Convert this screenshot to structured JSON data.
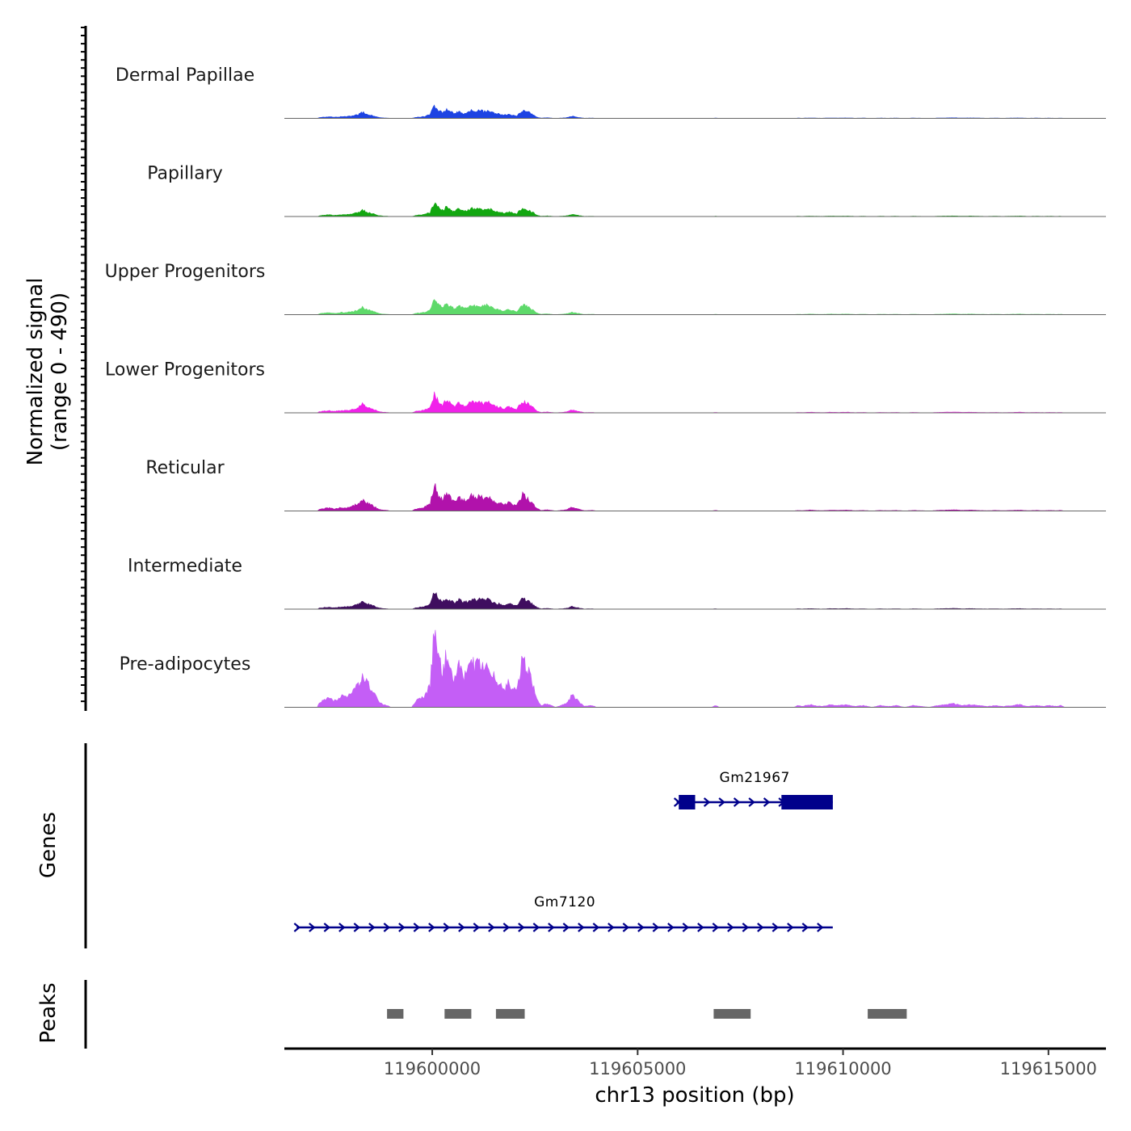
{
  "chart_data": {
    "type": "area",
    "title": "",
    "ylabel": "Normalized signal\n(range 0 - 490)",
    "ylabel_lines": [
      "Normalized signal",
      "(range 0 - 490)"
    ],
    "ylim": [
      0,
      490
    ],
    "xlabel": "chr13 position (bp)",
    "xlim": [
      119596400,
      119616400
    ],
    "x_ticks": [
      119600000,
      119605000,
      119610000,
      119615000
    ],
    "x_tick_labels": [
      "119600000",
      "119605000",
      "119610000",
      "119615000"
    ],
    "tracks": [
      {
        "name": "Dermal Papillae",
        "color": "#1d43e3",
        "scale": 0.17
      },
      {
        "name": "Papillary",
        "color": "#12a710",
        "scale": 0.18
      },
      {
        "name": "Upper Progenitors",
        "color": "#5ed96a",
        "scale": 0.21
      },
      {
        "name": "Lower Progenitors",
        "color": "#f121ea",
        "scale": 0.24
      },
      {
        "name": "Reticular",
        "color": "#b112ab",
        "scale": 0.33
      },
      {
        "name": "Intermediate",
        "color": "#3f0e5f",
        "scale": 0.22
      },
      {
        "name": "Pre-adipocytes",
        "color": "#c45ef6",
        "scale": 1.0
      }
    ],
    "signal_profile": [
      [
        119596400,
        0
      ],
      [
        119597200,
        0
      ],
      [
        119597250,
        0.05
      ],
      [
        119597400,
        0.09
      ],
      [
        119597500,
        0.1
      ],
      [
        119597600,
        0.07
      ],
      [
        119597700,
        0.09
      ],
      [
        119597800,
        0.12
      ],
      [
        119597900,
        0.11
      ],
      [
        119598000,
        0.14
      ],
      [
        119598100,
        0.19
      ],
      [
        119598200,
        0.24
      ],
      [
        119598300,
        0.4
      ],
      [
        119598400,
        0.28
      ],
      [
        119598500,
        0.22
      ],
      [
        119598600,
        0.14
      ],
      [
        119598700,
        0.06
      ],
      [
        119598800,
        0.03
      ],
      [
        119598900,
        0.02
      ],
      [
        119599000,
        0.0
      ],
      [
        119599500,
        0.0
      ],
      [
        119599600,
        0.07
      ],
      [
        119599800,
        0.12
      ],
      [
        119599950,
        0.25
      ],
      [
        119600050,
        0.88
      ],
      [
        119600150,
        0.55
      ],
      [
        119600250,
        0.38
      ],
      [
        119600350,
        0.6
      ],
      [
        119600450,
        0.42
      ],
      [
        119600550,
        0.3
      ],
      [
        119600650,
        0.48
      ],
      [
        119600750,
        0.34
      ],
      [
        119600850,
        0.38
      ],
      [
        119600950,
        0.5
      ],
      [
        119601050,
        0.45
      ],
      [
        119601150,
        0.52
      ],
      [
        119601250,
        0.44
      ],
      [
        119601350,
        0.55
      ],
      [
        119601450,
        0.38
      ],
      [
        119601550,
        0.3
      ],
      [
        119601650,
        0.26
      ],
      [
        119601750,
        0.2
      ],
      [
        119601850,
        0.28
      ],
      [
        119601950,
        0.22
      ],
      [
        119602050,
        0.16
      ],
      [
        119602100,
        0.3
      ],
      [
        119602200,
        0.55
      ],
      [
        119602300,
        0.45
      ],
      [
        119602450,
        0.25
      ],
      [
        119602550,
        0.08
      ],
      [
        119602650,
        0.02
      ],
      [
        119602800,
        0.04
      ],
      [
        119602900,
        0.02
      ],
      [
        119603000,
        0.0
      ],
      [
        119603200,
        0.03
      ],
      [
        119603300,
        0.06
      ],
      [
        119603400,
        0.14
      ],
      [
        119603500,
        0.09
      ],
      [
        119603600,
        0.05
      ],
      [
        119603700,
        0.01
      ],
      [
        119603900,
        0.02
      ],
      [
        119604000,
        0.0
      ],
      [
        119606800,
        0.0
      ],
      [
        119606900,
        0.02
      ],
      [
        119607000,
        0.0
      ],
      [
        119608800,
        0.0
      ],
      [
        119608900,
        0.02
      ],
      [
        119609000,
        0.01
      ],
      [
        119609200,
        0.03
      ],
      [
        119609300,
        0.02
      ],
      [
        119609500,
        0.01
      ],
      [
        119609700,
        0.03
      ],
      [
        119609900,
        0.02
      ],
      [
        119610100,
        0.03
      ],
      [
        119610300,
        0.01
      ],
      [
        119610500,
        0.02
      ],
      [
        119610700,
        0.0
      ],
      [
        119610900,
        0.02
      ],
      [
        119611100,
        0.01
      ],
      [
        119611300,
        0.02
      ],
      [
        119611500,
        0.0
      ],
      [
        119611700,
        0.02
      ],
      [
        119611900,
        0.01
      ],
      [
        119612100,
        0.0
      ],
      [
        119612300,
        0.02
      ],
      [
        119612500,
        0.03
      ],
      [
        119612700,
        0.04
      ],
      [
        119612900,
        0.02
      ],
      [
        119613100,
        0.03
      ],
      [
        119613300,
        0.02
      ],
      [
        119613500,
        0.01
      ],
      [
        119613700,
        0.02
      ],
      [
        119613900,
        0.01
      ],
      [
        119614100,
        0.02
      ],
      [
        119614300,
        0.03
      ],
      [
        119614500,
        0.01
      ],
      [
        119614700,
        0.02
      ],
      [
        119614900,
        0.01
      ],
      [
        119615000,
        0.02
      ],
      [
        119615200,
        0.01
      ],
      [
        119615300,
        0.02
      ],
      [
        119615400,
        0.0
      ],
      [
        119616400,
        0.0
      ]
    ],
    "genes": [
      {
        "name": "Gm21967",
        "strand": "+",
        "start": 119605950,
        "end": 119609750,
        "exons": [
          [
            119606000,
            119606400
          ],
          [
            119608500,
            119609750
          ]
        ]
      },
      {
        "name": "Gm7120",
        "strand": "+",
        "start": 119596700,
        "end": 119609750,
        "exons": []
      }
    ],
    "gene_track_label": "Genes",
    "peaks": [
      [
        119598900,
        119599300
      ],
      [
        119600300,
        119600950
      ],
      [
        119601550,
        119602250
      ],
      [
        119606850,
        119607750
      ],
      [
        119610600,
        119611550
      ]
    ],
    "peaks_track_label": "Peaks",
    "gene_color": "#00008b",
    "peak_color": "#666666"
  }
}
